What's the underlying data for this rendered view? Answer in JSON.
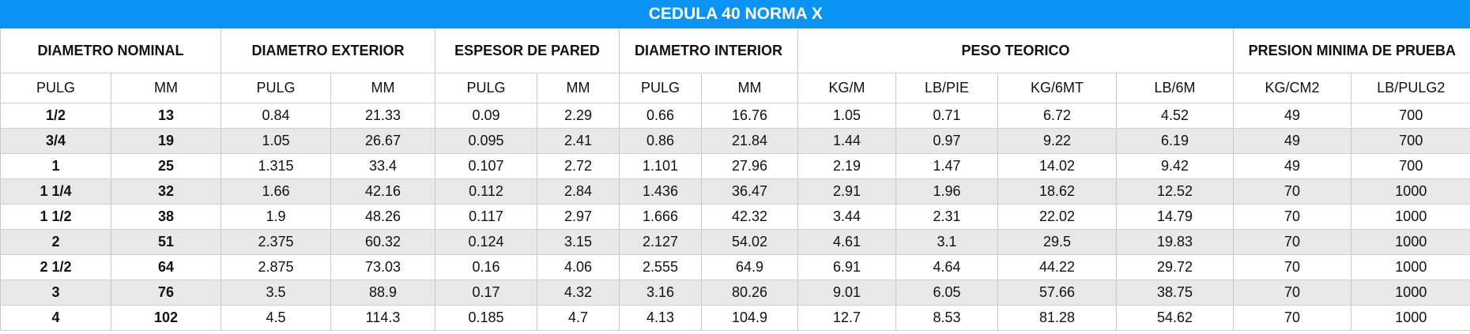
{
  "table": {
    "title": "CEDULA 40 NORMA X",
    "groups": [
      {
        "label": "DIAMETRO NOMINAL",
        "span": 2
      },
      {
        "label": "DIAMETRO EXTERIOR",
        "span": 2
      },
      {
        "label": "ESPESOR DE PARED",
        "span": 2
      },
      {
        "label": "DIAMETRO INTERIOR",
        "span": 2
      },
      {
        "label": "PESO TEORICO",
        "span": 4
      },
      {
        "label": "PRESION MINIMA DE PRUEBA",
        "span": 2
      }
    ],
    "subheaders": [
      "PULG",
      "MM",
      "PULG",
      "MM",
      "PULG",
      "MM",
      "PULG",
      "MM",
      "KG/M",
      "LB/PIE",
      "KG/6MT",
      "LB/6M",
      "KG/CM2",
      "LB/PULG2"
    ],
    "rows": [
      [
        "1/2",
        13,
        0.84,
        21.33,
        0.09,
        2.29,
        0.66,
        16.76,
        1.05,
        0.71,
        6.72,
        4.52,
        49,
        700
      ],
      [
        "3/4",
        19,
        1.05,
        26.67,
        0.095,
        2.41,
        0.86,
        21.84,
        1.44,
        0.97,
        9.22,
        6.19,
        49,
        700
      ],
      [
        "1",
        25,
        1.315,
        33.4,
        0.107,
        2.72,
        1.101,
        27.96,
        2.19,
        1.47,
        14.02,
        9.42,
        49,
        700
      ],
      [
        "1 1/4",
        32,
        1.66,
        42.16,
        0.112,
        2.84,
        1.436,
        36.47,
        2.91,
        1.96,
        18.62,
        12.52,
        70,
        1000
      ],
      [
        "1 1/2",
        38,
        1.9,
        48.26,
        0.117,
        2.97,
        1.666,
        42.32,
        3.44,
        2.31,
        22.02,
        14.79,
        70,
        1000
      ],
      [
        "2",
        51,
        2.375,
        60.32,
        0.124,
        3.15,
        2.127,
        54.02,
        4.61,
        3.1,
        29.5,
        19.83,
        70,
        1000
      ],
      [
        "2 1/2",
        64,
        2.875,
        73.03,
        0.16,
        4.06,
        2.555,
        64.9,
        6.91,
        4.64,
        44.22,
        29.72,
        70,
        1000
      ],
      [
        "3",
        76,
        3.5,
        88.9,
        0.17,
        4.32,
        3.16,
        80.26,
        9.01,
        6.05,
        57.66,
        38.75,
        70,
        1000
      ],
      [
        "4",
        102,
        4.5,
        114.3,
        0.185,
        4.7,
        4.13,
        104.9,
        12.7,
        8.53,
        81.28,
        54.62,
        70,
        1000
      ]
    ]
  }
}
